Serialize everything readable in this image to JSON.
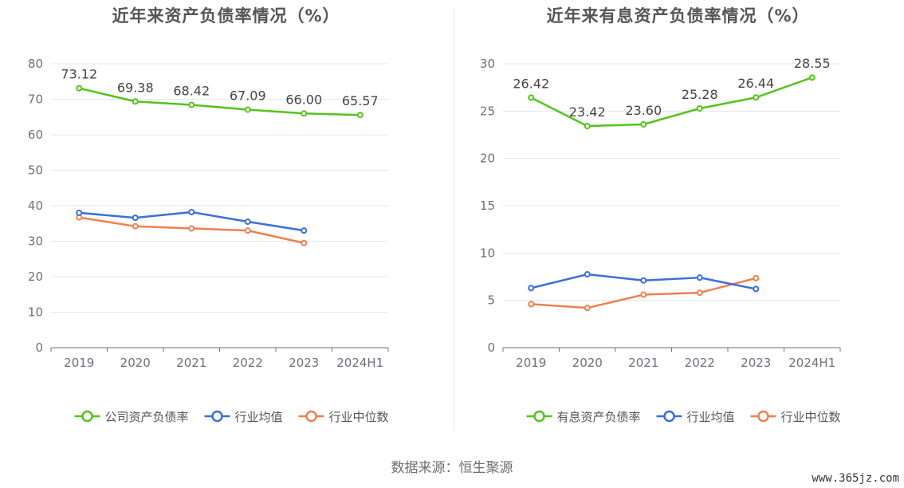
{
  "chart_data": [
    {
      "type": "line",
      "title": "近年来资产负债率情况（%）",
      "categories": [
        "2019",
        "2020",
        "2021",
        "2022",
        "2023",
        "2024H1"
      ],
      "ylim": [
        0,
        80
      ],
      "yticks": [
        0,
        10,
        20,
        30,
        40,
        50,
        60,
        70,
        80
      ],
      "grid": true,
      "legend_position": "bottom",
      "series": [
        {
          "name": "公司资产负债率",
          "color": "#52c41a",
          "values": [
            73.12,
            69.38,
            68.42,
            67.09,
            66.0,
            65.57
          ],
          "labels": [
            "73.12",
            "69.38",
            "68.42",
            "67.09",
            "66.00",
            "65.57"
          ]
        },
        {
          "name": "行业均值",
          "color": "#3b6fd6",
          "values": [
            38.0,
            36.6,
            38.2,
            35.5,
            33.0,
            null
          ],
          "labels": []
        },
        {
          "name": "行业中位数",
          "color": "#f07f4f",
          "values": [
            36.7,
            34.2,
            33.6,
            33.0,
            29.5,
            null
          ],
          "labels": []
        }
      ]
    },
    {
      "type": "line",
      "title": "近年来有息资产负债率情况（%）",
      "categories": [
        "2019",
        "2020",
        "2021",
        "2022",
        "2023",
        "2024H1"
      ],
      "ylim": [
        0,
        30
      ],
      "yticks": [
        0,
        5,
        10,
        15,
        20,
        25,
        30
      ],
      "grid": true,
      "legend_position": "bottom",
      "series": [
        {
          "name": "有息资产负债率",
          "color": "#52c41a",
          "values": [
            26.42,
            23.42,
            23.6,
            25.28,
            26.44,
            28.55
          ],
          "labels": [
            "26.42",
            "23.42",
            "23.60",
            "25.28",
            "26.44",
            "28.55"
          ]
        },
        {
          "name": "行业均值",
          "color": "#3b6fd6",
          "values": [
            6.3,
            7.75,
            7.1,
            7.4,
            6.2,
            null
          ],
          "labels": []
        },
        {
          "name": "行业中位数",
          "color": "#f07f4f",
          "values": [
            4.6,
            4.2,
            5.6,
            5.8,
            7.35,
            null
          ],
          "labels": []
        }
      ]
    }
  ],
  "source_text": "数据来源：恒生聚源",
  "watermark": "www.365jz.com"
}
